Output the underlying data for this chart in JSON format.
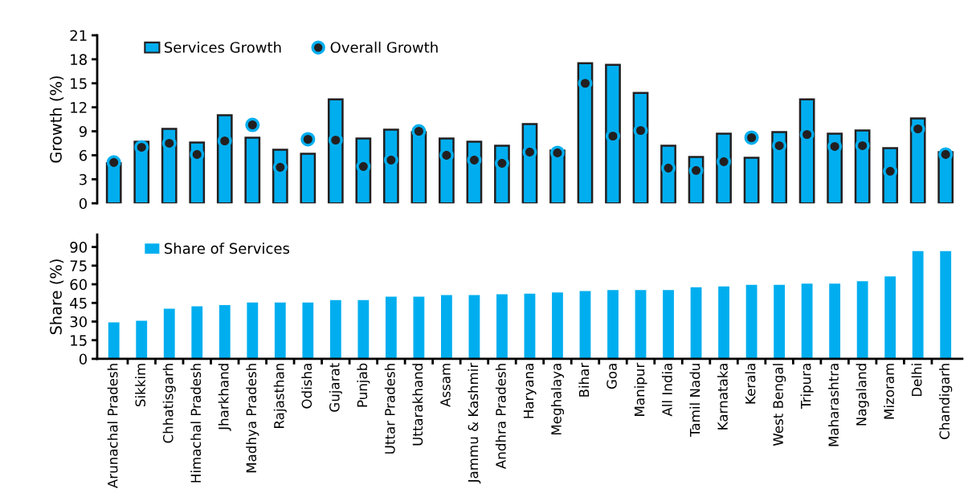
{
  "chart_data": [
    {
      "type": "bar",
      "ylabel": "Growth (%)",
      "categories": [
        "Arunachal Pradesh",
        "Sikkim",
        "Chhatisgarh",
        "Himachal Pradesh",
        "Jharkhand",
        "Madhya Pradesh",
        "Rajasthan",
        "Odisha",
        "Gujarat",
        "Punjab",
        "Uttar Pradesh",
        "Uttarakhand",
        "Assam",
        "Jammu & Kashmir",
        "Andhra Pradesh",
        "Haryana",
        "Meghalaya",
        "Bihar",
        "Goa",
        "Manipur",
        "All India",
        "Tamil Nadu",
        "Karnataka",
        "Kerala",
        "West Bengal",
        "Tripura",
        "Maharashtra",
        "Nagaland",
        "Mizoram",
        "Delhi",
        "Chandigarh"
      ],
      "series": [
        {
          "name": "Services Growth",
          "type": "bar",
          "color": "#00aeef",
          "values": [
            5.0,
            7.7,
            9.3,
            7.6,
            11.0,
            8.2,
            6.7,
            6.2,
            13.0,
            8.1,
            9.2,
            8.9,
            8.1,
            7.7,
            7.2,
            9.9,
            6.6,
            17.5,
            17.3,
            13.8,
            7.2,
            5.8,
            8.7,
            5.7,
            8.9,
            13.0,
            8.7,
            9.1,
            6.9,
            10.6,
            6.4
          ]
        },
        {
          "name": "Overall Growth",
          "type": "scatter",
          "color": "#231f20",
          "values": [
            5.1,
            7.0,
            7.5,
            6.1,
            7.8,
            9.8,
            4.5,
            8.0,
            7.9,
            4.6,
            5.4,
            9.0,
            6.0,
            5.4,
            5.0,
            6.4,
            6.3,
            15.0,
            8.4,
            9.1,
            4.4,
            4.1,
            5.2,
            8.2,
            7.2,
            8.6,
            7.1,
            7.2,
            4.0,
            9.3,
            6.1
          ]
        }
      ],
      "ylim": [
        0,
        21
      ],
      "yticks": [
        0,
        3,
        6,
        9,
        12,
        15,
        18,
        21
      ],
      "tick_labels": "y",
      "legend": "top left",
      "grid": false
    },
    {
      "type": "bar",
      "ylabel": "Share (%)",
      "categories": [
        "Arunachal Pradesh",
        "Sikkim",
        "Chhatisgarh",
        "Himachal Pradesh",
        "Jharkhand",
        "Madhya Pradesh",
        "Rajasthan",
        "Odisha",
        "Gujarat",
        "Punjab",
        "Uttar Pradesh",
        "Uttarakhand",
        "Assam",
        "Jammu & Kashmir",
        "Andhra Pradesh",
        "Haryana",
        "Meghalaya",
        "Bihar",
        "Goa",
        "Manipur",
        "All India",
        "Tamil Nadu",
        "Karnataka",
        "Kerala",
        "West Bengal",
        "Tripura",
        "Maharashtra",
        "Nagaland",
        "Mizoram",
        "Delhi",
        "Chandigarh"
      ],
      "series": [
        {
          "name": "Share of Services",
          "color": "#00aeef",
          "values": [
            29.4,
            30.6,
            40.4,
            42.3,
            43.2,
            45.4,
            45.4,
            45.4,
            47.3,
            47.3,
            50.1,
            50.1,
            51.3,
            51.3,
            52.0,
            52.5,
            53.5,
            54.5,
            55.4,
            55.4,
            55.4,
            57.6,
            58.3,
            59.5,
            59.5,
            60.5,
            60.5,
            62.4,
            66.3,
            86.7,
            86.7
          ]
        }
      ],
      "ylim": [
        0,
        100
      ],
      "yticks": [
        0,
        15,
        30,
        45,
        60,
        75,
        90
      ],
      "legend": "top left",
      "grid": false
    }
  ]
}
